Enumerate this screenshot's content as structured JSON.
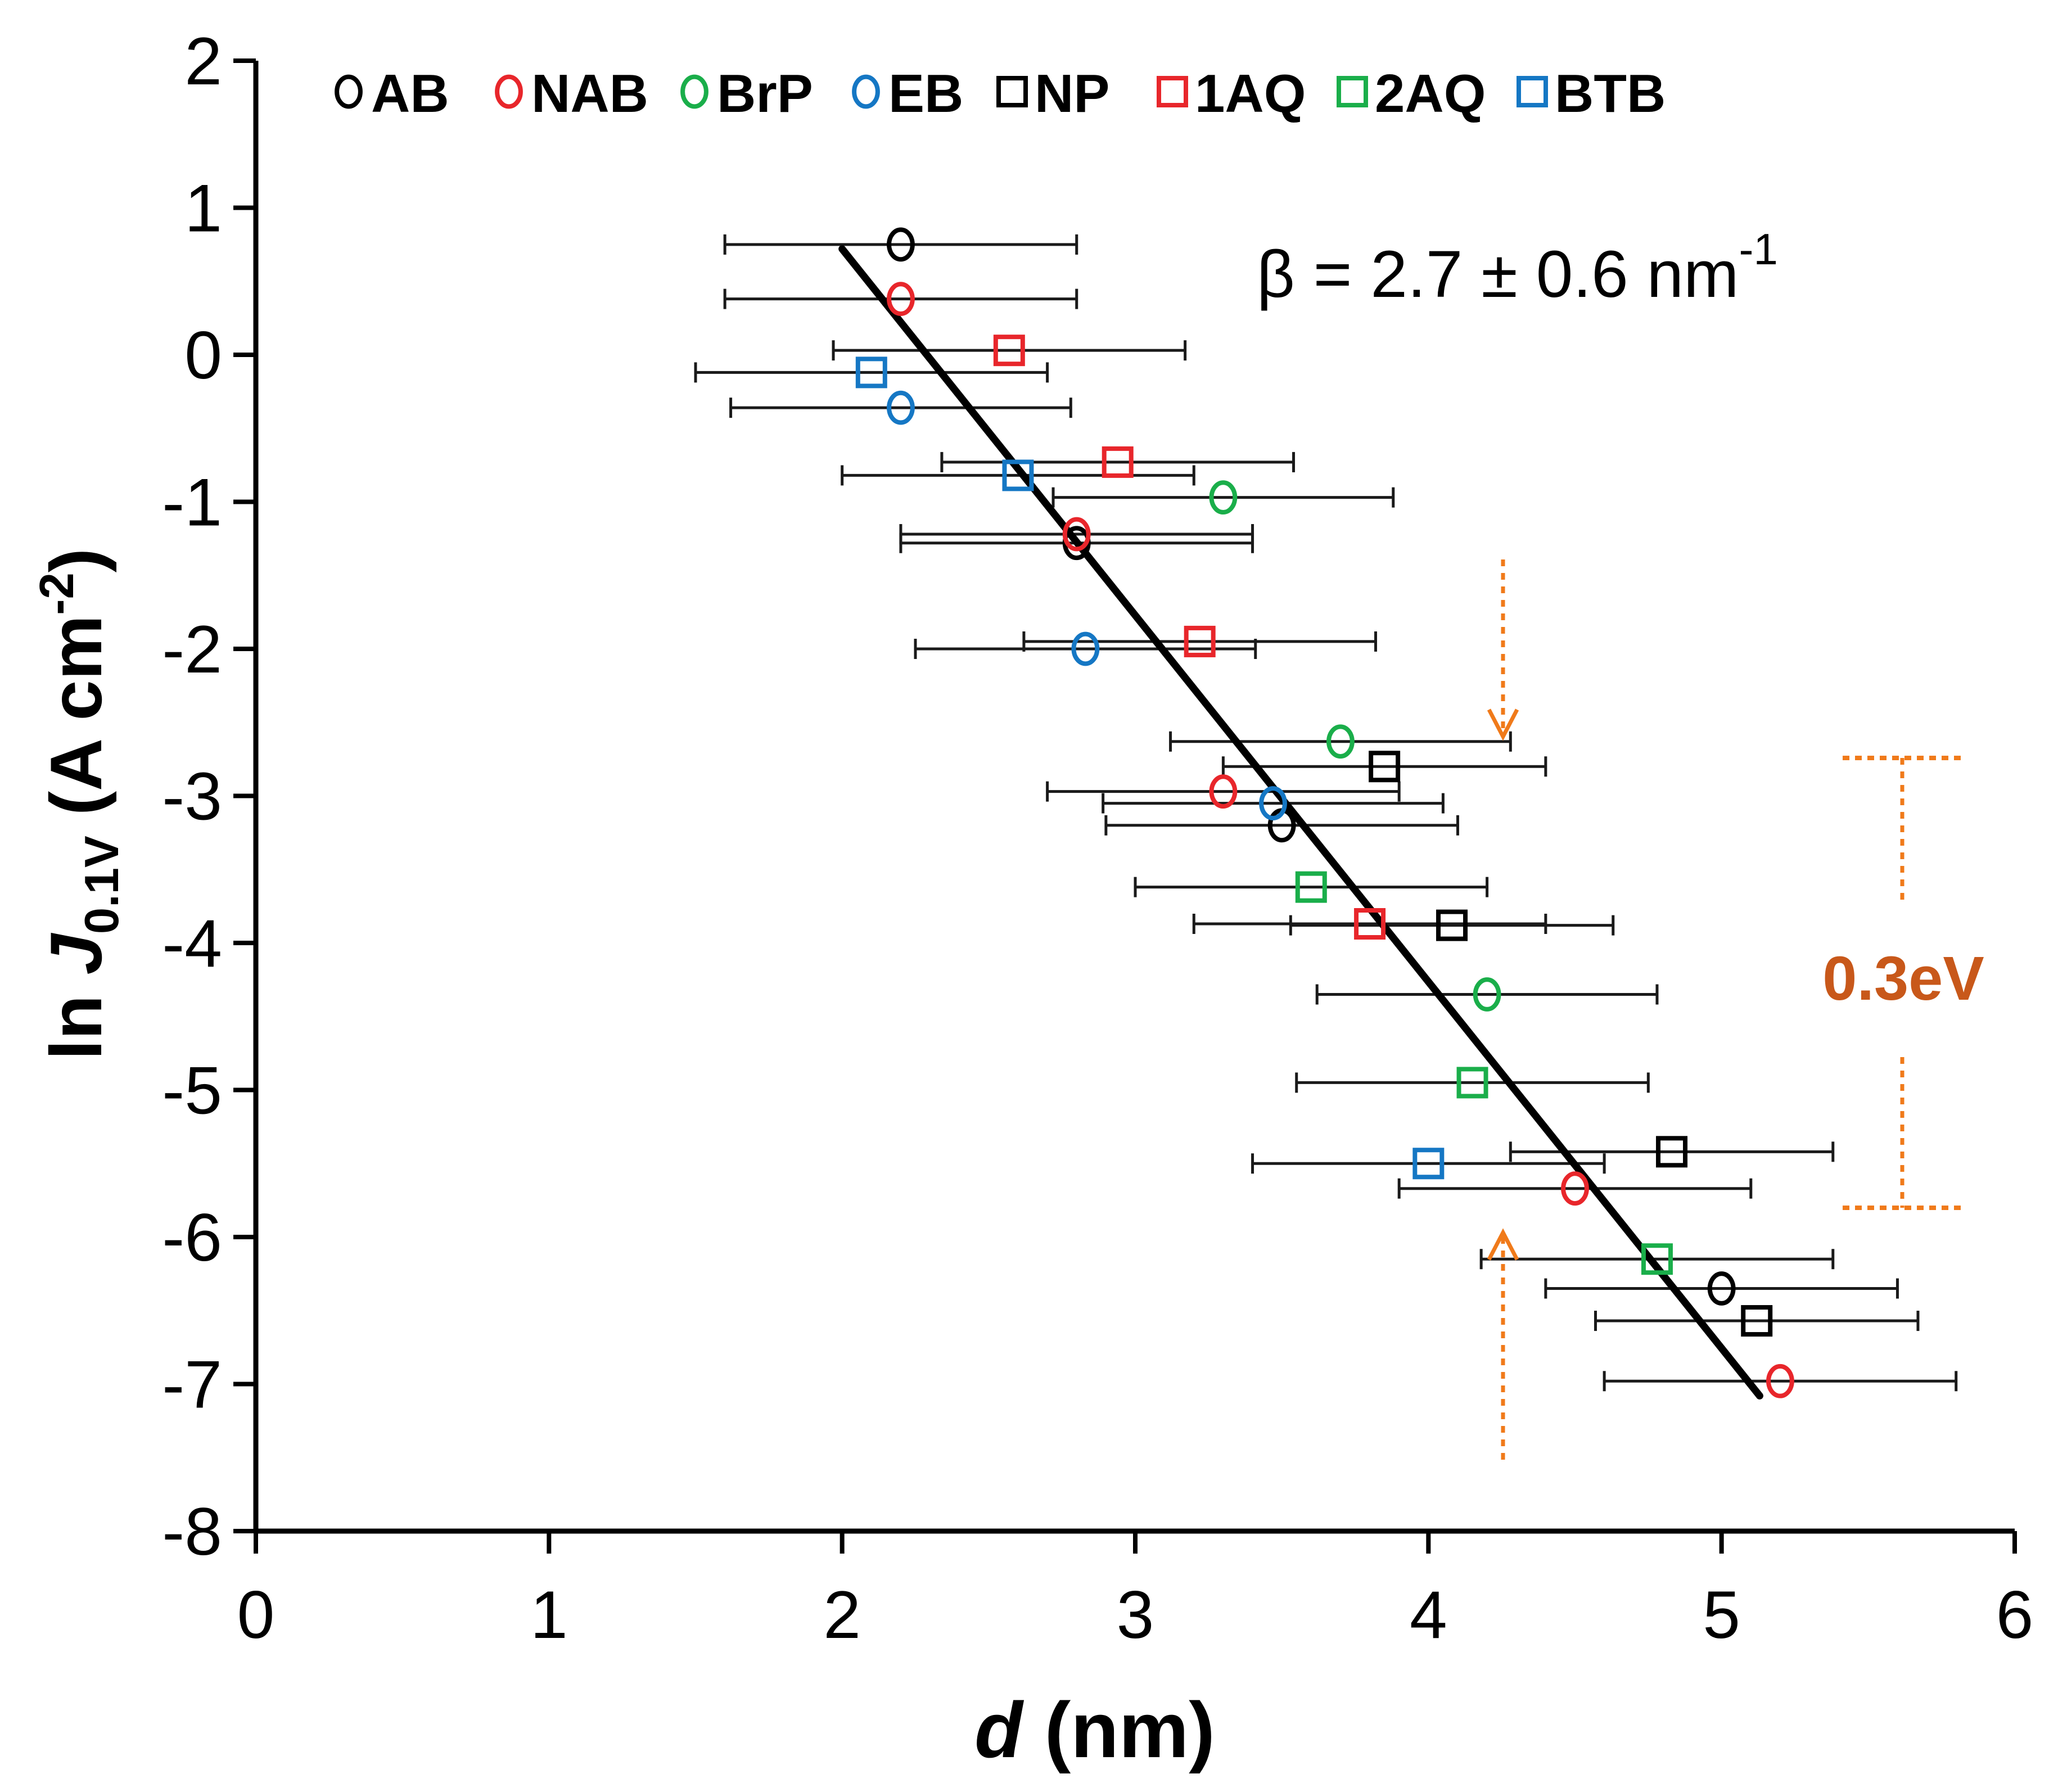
{
  "chart_data": {
    "type": "scatter",
    "xlabel": "d",
    "xlabel_unit": "(nm)",
    "ylabel_prefix": "ln ",
    "ylabel_var": "J",
    "ylabel_sub": "0.1V",
    "ylabel_unit": " (A cm",
    "ylabel_sup": "-2",
    "ylabel_close": ")",
    "xlim": [
      0,
      6
    ],
    "ylim": [
      -8,
      2
    ],
    "xticks": [
      "0",
      "1",
      "2",
      "3",
      "4",
      "5",
      "6"
    ],
    "yticks": [
      "2",
      "1",
      "0",
      "-1",
      "-2",
      "-3",
      "-4",
      "-5",
      "-6",
      "-7",
      "-8"
    ],
    "grid": false,
    "legend_position": "top",
    "annotation_beta_prefix": "β = 2.7 ± 0.6 nm",
    "annotation_beta_sup": "-1",
    "annotation_energy": "0.3eV",
    "fit_line": {
      "x": [
        2.0,
        5.13
      ],
      "y": [
        0.72,
        -7.08
      ],
      "color": "#000000"
    },
    "series": [
      {
        "name": "AB",
        "marker": "circle",
        "color": "#000000",
        "points": [
          {
            "x": 2.2,
            "y": 0.75,
            "xerr": 0.6
          },
          {
            "x": 2.8,
            "y": -1.28,
            "xerr": 0.6
          },
          {
            "x": 3.5,
            "y": -3.2,
            "xerr": 0.6
          },
          {
            "x": 5.0,
            "y": -6.35,
            "xerr": 0.6
          }
        ]
      },
      {
        "name": "NAB",
        "marker": "circle",
        "color": "#e8262b",
        "points": [
          {
            "x": 2.2,
            "y": 0.38,
            "xerr": 0.6
          },
          {
            "x": 2.8,
            "y": -1.22,
            "xerr": 0.6
          },
          {
            "x": 3.3,
            "y": -2.97,
            "xerr": 0.6
          },
          {
            "x": 4.5,
            "y": -5.67,
            "xerr": 0.6
          },
          {
            "x": 5.2,
            "y": -6.98,
            "xerr": 0.6
          }
        ]
      },
      {
        "name": "BrP",
        "marker": "circle",
        "color": "#1aae4a",
        "points": [
          {
            "x": 3.3,
            "y": -0.97,
            "xerr": 0.58
          },
          {
            "x": 3.7,
            "y": -2.63,
            "xerr": 0.58
          },
          {
            "x": 4.2,
            "y": -4.35,
            "xerr": 0.58
          }
        ]
      },
      {
        "name": "EB",
        "marker": "circle",
        "color": "#1577c4",
        "points": [
          {
            "x": 2.2,
            "y": -0.36,
            "xerr": 0.58
          },
          {
            "x": 2.83,
            "y": -2.0,
            "xerr": 0.58
          },
          {
            "x": 3.47,
            "y": -3.05,
            "xerr": 0.58
          }
        ]
      },
      {
        "name": "NP",
        "marker": "square",
        "color": "#000000",
        "points": [
          {
            "x": 3.85,
            "y": -2.8,
            "xerr": 0.55
          },
          {
            "x": 4.08,
            "y": -3.88,
            "xerr": 0.55
          },
          {
            "x": 4.83,
            "y": -5.42,
            "xerr": 0.55
          },
          {
            "x": 5.12,
            "y": -6.57,
            "xerr": 0.55
          }
        ]
      },
      {
        "name": "1AQ",
        "marker": "square",
        "color": "#e8262b",
        "points": [
          {
            "x": 2.57,
            "y": 0.03,
            "xerr": 0.6
          },
          {
            "x": 2.94,
            "y": -0.73,
            "xerr": 0.6
          },
          {
            "x": 3.22,
            "y": -1.95,
            "xerr": 0.6
          },
          {
            "x": 3.8,
            "y": -3.87,
            "xerr": 0.6
          }
        ]
      },
      {
        "name": "2AQ",
        "marker": "square",
        "color": "#1aae4a",
        "points": [
          {
            "x": 3.6,
            "y": -3.62,
            "xerr": 0.6
          },
          {
            "x": 4.15,
            "y": -4.95,
            "xerr": 0.6
          },
          {
            "x": 4.78,
            "y": -6.15,
            "xerr": 0.6
          }
        ]
      },
      {
        "name": "BTB",
        "marker": "square",
        "color": "#1577c4",
        "points": [
          {
            "x": 2.1,
            "y": -0.12,
            "xerr": 0.6
          },
          {
            "x": 2.6,
            "y": -0.82,
            "xerr": 0.6
          },
          {
            "x": 4.0,
            "y": -5.5,
            "xerr": 0.6
          }
        ]
      }
    ]
  }
}
